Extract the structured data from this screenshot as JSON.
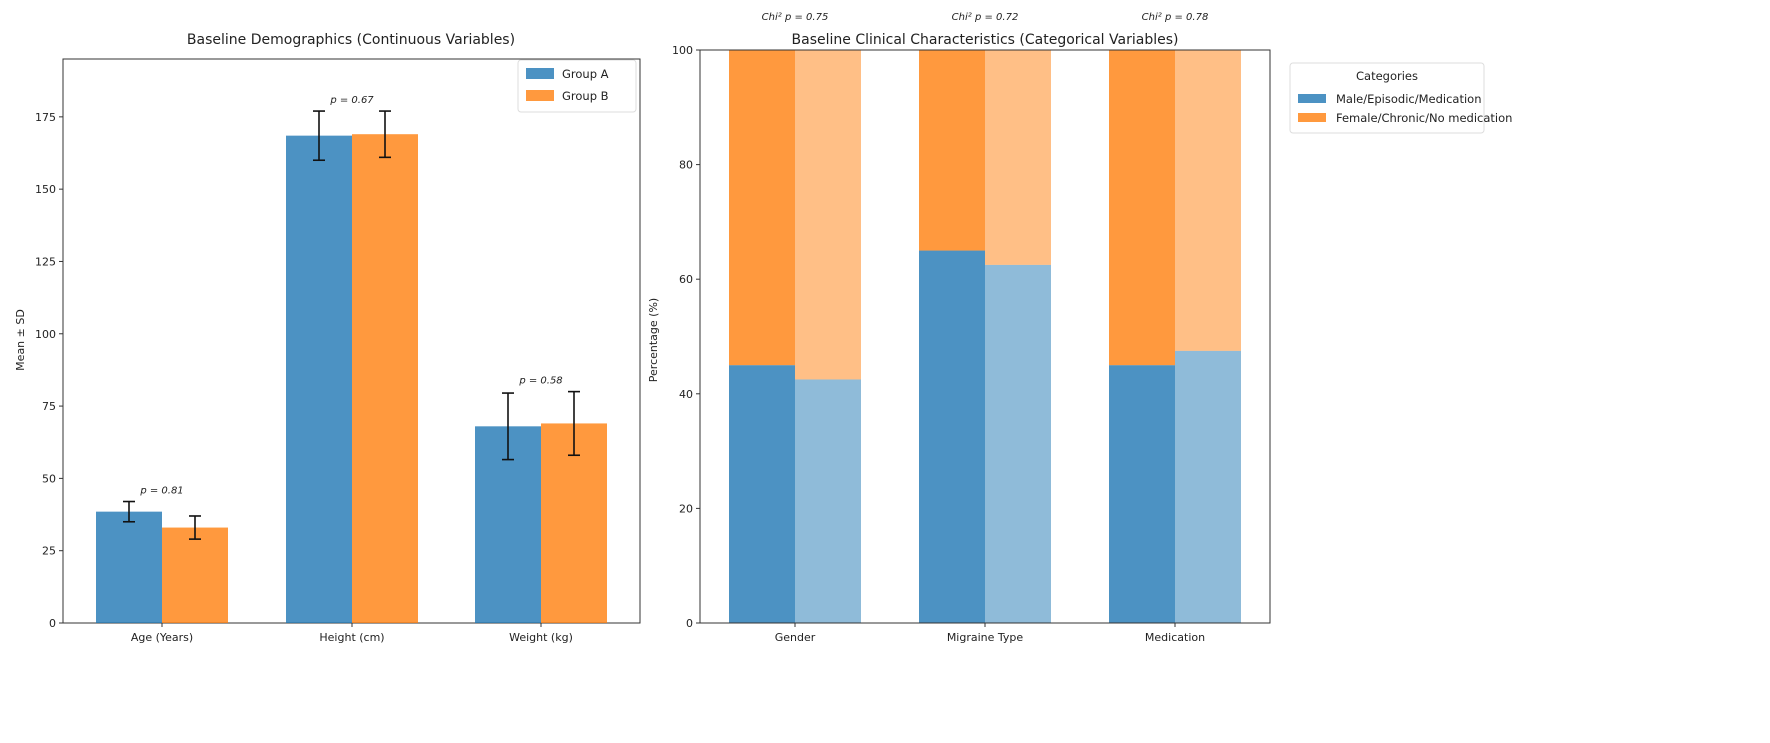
{
  "chart_data": [
    {
      "type": "bar",
      "title": "Baseline Demographics (Continuous Variables)",
      "xlabel": "",
      "ylabel": "Mean ± SD",
      "ylim": [
        0,
        195
      ],
      "yticks": [
        0,
        25,
        50,
        75,
        100,
        125,
        150,
        175
      ],
      "categories": [
        "Age (Years)",
        "Height (cm)",
        "Weight (kg)"
      ],
      "series": [
        {
          "name": "Group A",
          "color": "#1f77b4",
          "values": [
            38.5,
            168.5,
            68
          ],
          "errors": [
            3.5,
            8.5,
            11.5
          ]
        },
        {
          "name": "Group B",
          "color": "#ff7f0e",
          "values": [
            33,
            169,
            69
          ],
          "errors": [
            4,
            8,
            11
          ]
        }
      ],
      "annotations": [
        "p = 0.81",
        "p = 0.67",
        "p = 0.58"
      ],
      "legend": "top-right",
      "grid": false
    },
    {
      "type": "bar",
      "stacked": true,
      "title": "Baseline Clinical Characteristics (Categorical Variables)",
      "xlabel": "",
      "ylabel": "Percentage (%)",
      "ylim": [
        0,
        100
      ],
      "yticks": [
        0,
        20,
        40,
        60,
        80,
        100
      ],
      "categories": [
        "Gender",
        "Migraine Type",
        "Medication"
      ],
      "groups": [
        "Group A",
        "Group B"
      ],
      "series": [
        {
          "name": "Male/Episodic/Medication",
          "color": "#1f77b4",
          "values_group_a": [
            45,
            65,
            45
          ],
          "values_group_b": [
            42.5,
            62.5,
            47.5
          ]
        },
        {
          "name": "Female/Chronic/No medication",
          "color": "#ff7f0e",
          "values_group_a": [
            55,
            35,
            55
          ],
          "values_group_b": [
            57.5,
            37.5,
            52.5
          ]
        }
      ],
      "annotations": [
        "Chi² p = 0.75",
        "Chi² p = 0.72",
        "Chi² p = 0.78"
      ],
      "legend_title": "Categories",
      "legend": "outside-right",
      "grid": false
    }
  ]
}
